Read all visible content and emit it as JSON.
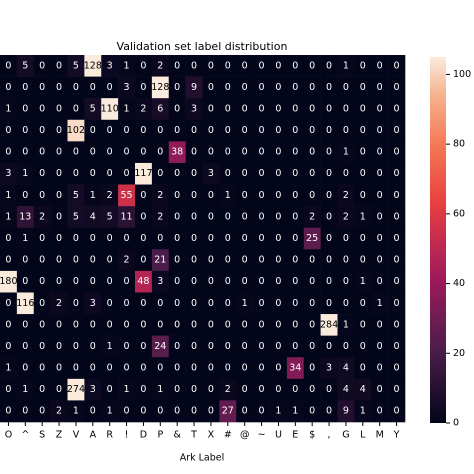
{
  "chart_data": {
    "type": "heatmap",
    "title": "Validation set label distribution",
    "x_label": "Ark Label",
    "categories": [
      "O",
      "^",
      "S",
      "Z",
      "V",
      "A",
      "R",
      "!",
      "D",
      "P",
      "&",
      "T",
      "X",
      "#",
      "@",
      "~",
      "U",
      "E",
      "$",
      ",",
      "G",
      "L",
      "M",
      "Y"
    ],
    "values": [
      [
        0,
        5,
        0,
        0,
        5,
        128,
        3,
        1,
        0,
        2,
        0,
        0,
        0,
        0,
        0,
        0,
        0,
        0,
        0,
        0,
        1,
        0,
        0,
        0
      ],
      [
        0,
        0,
        0,
        0,
        0,
        0,
        0,
        3,
        0,
        128,
        0,
        9,
        0,
        0,
        0,
        0,
        0,
        0,
        0,
        0,
        0,
        0,
        0,
        0
      ],
      [
        1,
        0,
        0,
        0,
        0,
        5,
        110,
        1,
        2,
        6,
        0,
        3,
        0,
        0,
        0,
        0,
        0,
        0,
        0,
        0,
        0,
        0,
        0,
        0
      ],
      [
        0,
        0,
        0,
        0,
        102,
        0,
        0,
        0,
        0,
        0,
        0,
        0,
        0,
        0,
        0,
        0,
        0,
        0,
        0,
        0,
        0,
        0,
        0,
        0
      ],
      [
        0,
        0,
        0,
        0,
        0,
        0,
        0,
        0,
        0,
        0,
        38,
        0,
        0,
        0,
        0,
        0,
        0,
        0,
        0,
        0,
        1,
        0,
        0,
        0
      ],
      [
        3,
        1,
        0,
        0,
        0,
        0,
        0,
        0,
        117,
        0,
        0,
        0,
        3,
        0,
        0,
        0,
        0,
        0,
        0,
        0,
        0,
        0,
        0,
        0
      ],
      [
        1,
        0,
        0,
        0,
        5,
        1,
        2,
        55,
        0,
        2,
        0,
        0,
        0,
        1,
        0,
        0,
        0,
        0,
        0,
        0,
        2,
        0,
        0,
        0
      ],
      [
        1,
        13,
        2,
        0,
        5,
        4,
        5,
        11,
        0,
        2,
        0,
        0,
        0,
        0,
        0,
        0,
        0,
        0,
        2,
        0,
        2,
        1,
        0,
        0
      ],
      [
        0,
        1,
        0,
        0,
        0,
        0,
        0,
        0,
        0,
        0,
        0,
        0,
        0,
        0,
        0,
        0,
        0,
        0,
        25,
        0,
        0,
        0,
        0,
        0
      ],
      [
        0,
        0,
        0,
        0,
        0,
        0,
        0,
        2,
        0,
        21,
        0,
        0,
        0,
        0,
        0,
        0,
        0,
        0,
        0,
        0,
        0,
        0,
        0,
        0
      ],
      [
        180,
        0,
        0,
        0,
        0,
        0,
        0,
        0,
        48,
        3,
        0,
        0,
        0,
        0,
        0,
        0,
        0,
        0,
        0,
        0,
        0,
        1,
        0,
        0
      ],
      [
        0,
        116,
        0,
        2,
        0,
        3,
        0,
        0,
        0,
        0,
        0,
        0,
        0,
        0,
        1,
        0,
        0,
        0,
        0,
        0,
        0,
        0,
        1,
        0
      ],
      [
        0,
        0,
        0,
        0,
        0,
        0,
        0,
        0,
        0,
        0,
        0,
        0,
        0,
        0,
        0,
        0,
        0,
        0,
        0,
        284,
        1,
        0,
        0,
        0
      ],
      [
        0,
        0,
        0,
        0,
        0,
        0,
        1,
        0,
        0,
        24,
        0,
        0,
        0,
        0,
        0,
        0,
        0,
        0,
        0,
        0,
        0,
        0,
        0,
        0
      ],
      [
        1,
        0,
        0,
        0,
        0,
        0,
        0,
        0,
        0,
        0,
        0,
        0,
        0,
        0,
        0,
        0,
        0,
        34,
        0,
        3,
        4,
        0,
        0,
        0
      ],
      [
        0,
        1,
        0,
        0,
        274,
        3,
        0,
        1,
        0,
        1,
        0,
        0,
        0,
        2,
        0,
        0,
        0,
        0,
        0,
        0,
        4,
        4,
        0,
        0
      ],
      [
        0,
        0,
        0,
        2,
        1,
        0,
        1,
        0,
        0,
        0,
        0,
        0,
        0,
        27,
        0,
        0,
        1,
        1,
        0,
        0,
        9,
        1,
        0,
        0
      ]
    ],
    "clim": [
      0,
      105
    ],
    "cticks": [
      0,
      20,
      40,
      60,
      80,
      100
    ],
    "colormap": "rocket"
  }
}
